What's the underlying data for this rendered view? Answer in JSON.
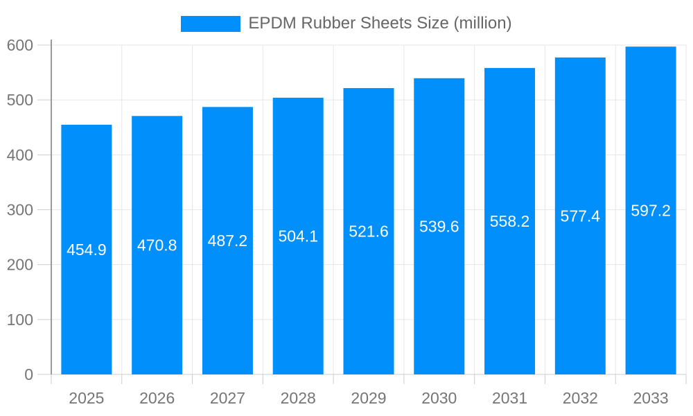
{
  "chart_data": {
    "type": "bar",
    "title": "",
    "legend": "EPDM Rubber Sheets Size (million)",
    "legend_position": "top-center",
    "categories": [
      "2025",
      "2026",
      "2027",
      "2028",
      "2029",
      "2030",
      "2031",
      "2032",
      "2033"
    ],
    "values": [
      454.9,
      470.8,
      487.2,
      504.1,
      521.6,
      539.6,
      558.2,
      577.4,
      597.2
    ],
    "xlabel": "",
    "ylabel": "",
    "ylim": [
      0,
      600
    ],
    "yticks": [
      0,
      100,
      200,
      300,
      400,
      500,
      600
    ],
    "grid": true,
    "bar_label_position": "inside-center",
    "colors": {
      "bar": "#008ffb",
      "bar_label": "#ffffff",
      "axis_text": "#757575",
      "legend_text": "#666666",
      "grid_line": "#e6e6e6",
      "tick_line": "#cccccc",
      "baseline": "#cccccc",
      "y_axis_line": "#999999",
      "background": "#ffffff"
    }
  }
}
